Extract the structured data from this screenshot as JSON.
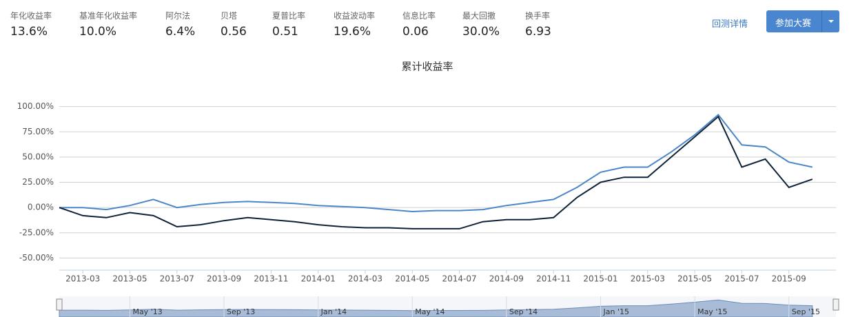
{
  "metrics": [
    {
      "label": "年化收益率",
      "value": "13.6%"
    },
    {
      "label": "基准年化收益率",
      "value": "10.0%"
    },
    {
      "label": "阿尔法",
      "value": "6.4%"
    },
    {
      "label": "贝塔",
      "value": "0.56"
    },
    {
      "label": "夏普比率",
      "value": "0.51"
    },
    {
      "label": "收益波动率",
      "value": "19.6%"
    },
    {
      "label": "信息比率",
      "value": "0.06"
    },
    {
      "label": "最大回撤",
      "value": "30.0%"
    },
    {
      "label": "换手率",
      "value": "6.93"
    }
  ],
  "links": {
    "details": "回测详情",
    "join": "参加大赛"
  },
  "chart_data": {
    "type": "line",
    "title": "累计收益率",
    "x": [
      "2013-02",
      "2013-03",
      "2013-04",
      "2013-05",
      "2013-06",
      "2013-07",
      "2013-08",
      "2013-09",
      "2013-10",
      "2013-11",
      "2013-12",
      "2014-01",
      "2014-02",
      "2014-03",
      "2014-04",
      "2014-05",
      "2014-06",
      "2014-07",
      "2014-08",
      "2014-09",
      "2014-10",
      "2014-11",
      "2014-12",
      "2015-01",
      "2015-02",
      "2015-03",
      "2015-04",
      "2015-05",
      "2015-06",
      "2015-07",
      "2015-08",
      "2015-09",
      "2015-10"
    ],
    "series": [
      {
        "color": "#4a86c8",
        "values": [
          0,
          0,
          -2,
          2,
          8,
          0,
          3,
          5,
          6,
          5,
          4,
          2,
          1,
          0,
          -2,
          -4,
          -3,
          -3,
          -2,
          2,
          5,
          8,
          20,
          35,
          40,
          40,
          55,
          72,
          92,
          62,
          60,
          45,
          40
        ]
      },
      {
        "color": "#0d2137",
        "values": [
          0,
          -8,
          -10,
          -5,
          -8,
          -19,
          -17,
          -13,
          -10,
          -12,
          -14,
          -17,
          -19,
          -20,
          -20,
          -21,
          -21,
          -21,
          -14,
          -12,
          -12,
          -10,
          10,
          25,
          30,
          30,
          50,
          70,
          90,
          40,
          48,
          20,
          28
        ]
      }
    ],
    "xlim": [
      "2013-02",
      "2015-11"
    ],
    "xticks": [
      "2013-03",
      "2013-05",
      "2013-07",
      "2013-09",
      "2013-11",
      "2014-01",
      "2014-03",
      "2014-05",
      "2014-07",
      "2014-09",
      "2014-11",
      "2015-01",
      "2015-03",
      "2015-05",
      "2015-07",
      "2015-09"
    ],
    "ylim": [
      -62,
      125
    ],
    "yticks": [
      {
        "value": -50,
        "label": "-50.00%"
      },
      {
        "value": -25,
        "label": "-25.00%"
      },
      {
        "value": 0,
        "label": "0.00%"
      },
      {
        "value": 25,
        "label": "25.00%"
      },
      {
        "value": 50,
        "label": "50.00%"
      },
      {
        "value": 75,
        "label": "75.00%"
      },
      {
        "value": 100,
        "label": "100.00%"
      }
    ],
    "grid": true,
    "navigator": {
      "ticks": [
        {
          "value": "2013-05",
          "label": "May '13"
        },
        {
          "value": "2013-09",
          "label": "Sep '13"
        },
        {
          "value": "2014-01",
          "label": "Jan '14"
        },
        {
          "value": "2014-05",
          "label": "May '14"
        },
        {
          "value": "2014-09",
          "label": "Sep '14"
        },
        {
          "value": "2015-01",
          "label": "Jan '15"
        },
        {
          "value": "2015-05",
          "label": "May '15"
        },
        {
          "value": "2015-09",
          "label": "Sep '15"
        }
      ]
    }
  }
}
